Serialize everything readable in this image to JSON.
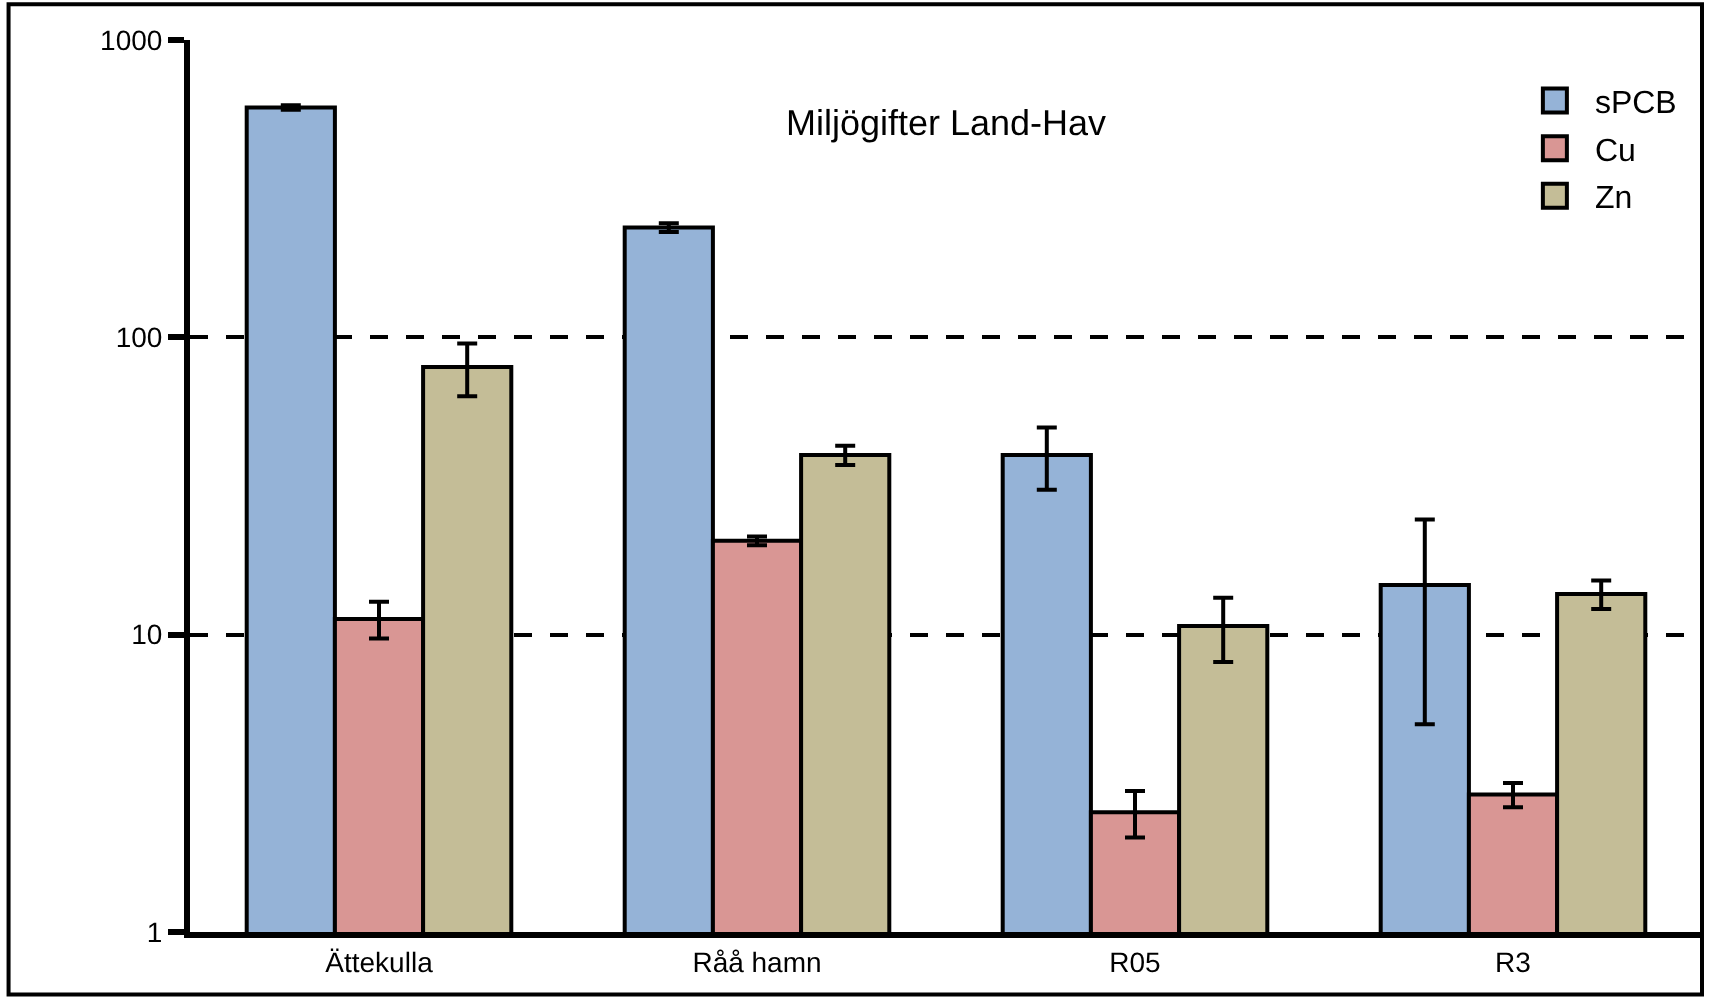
{
  "chart_data": {
    "type": "bar",
    "title": "Miljögifter Land-Hav",
    "categories": [
      "Ättekulla",
      "Råå hamn",
      "R05",
      "R3"
    ],
    "series": [
      {
        "name": "sPCB",
        "color": "#95b3d7",
        "values": [
          593,
          234,
          40.2,
          14.7
        ],
        "errors": [
          10,
          8,
          9.5,
          9.7
        ]
      },
      {
        "name": "Cu",
        "color": "#d99694",
        "values": [
          11.3,
          20.7,
          2.53,
          2.9
        ],
        "errors": [
          1.6,
          0.7,
          0.45,
          0.27
        ]
      },
      {
        "name": "Zn",
        "color": "#c4bd97",
        "values": [
          79.4,
          40.2,
          10.7,
          13.7
        ],
        "errors": [
          16,
          3,
          2.6,
          1.5
        ]
      }
    ],
    "log": "y",
    "ylim": [
      1,
      1000
    ],
    "yticks": [
      1,
      10,
      100,
      1000
    ],
    "grid": "y",
    "legend": "top right"
  }
}
